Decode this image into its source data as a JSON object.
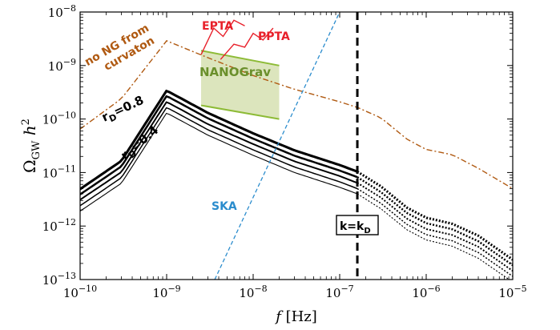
{
  "chart_data": {
    "type": "line",
    "xlabel": "f [Hz]",
    "ylabel": "ΩGW h2",
    "xscale": "log",
    "yscale": "log",
    "xlim": [
      1e-10,
      1e-05
    ],
    "ylim": [
      1e-13,
      1e-08
    ],
    "xticks": [
      {
        "m": "10",
        "e": "−10"
      },
      {
        "m": "10",
        "e": "−9"
      },
      {
        "m": "10",
        "e": "−8"
      },
      {
        "m": "10",
        "e": "−7"
      },
      {
        "m": "10",
        "e": "−6"
      },
      {
        "m": "10",
        "e": "−5"
      }
    ],
    "yticks": [
      {
        "m": "10",
        "e": "−13"
      },
      {
        "m": "10",
        "e": "−12"
      },
      {
        "m": "10",
        "e": "−11"
      },
      {
        "m": "10",
        "e": "−10"
      },
      {
        "m": "10",
        "e": "−9"
      },
      {
        "m": "10",
        "e": "−8"
      }
    ],
    "grid": false,
    "kD_line_f": 1.6e-07,
    "series": [
      {
        "name": "r_D = 0.4",
        "x": [
          1e-10,
          3e-10,
          1e-09,
          3e-09,
          1e-08,
          3e-08,
          1e-07,
          1.6e-07,
          3e-07,
          6e-07,
          1e-06,
          2e-06,
          4e-06,
          1e-05
        ],
        "y": [
          1.9e-12,
          6.3e-12,
          1.3e-10,
          5e-11,
          2.1e-11,
          1e-11,
          5.3e-12,
          4e-12,
          2.1e-12,
          8.5e-13,
          5.5e-13,
          4.2e-13,
          2.5e-13,
          9e-14
        ]
      },
      {
        "name": "",
        "x": [
          1e-10,
          3e-10,
          1e-09,
          3e-09,
          1e-08,
          3e-08,
          1e-07,
          1.6e-07,
          3e-07,
          6e-07,
          1e-06,
          2e-06,
          4e-06,
          1e-05
        ],
        "y": [
          2.4e-12,
          8e-12,
          1.65e-10,
          6.3e-11,
          2.65e-11,
          1.27e-11,
          6.7e-12,
          5e-12,
          2.65e-12,
          1.07e-12,
          6.9e-13,
          5.3e-13,
          3.2e-13,
          1.15e-13
        ]
      },
      {
        "name": "",
        "x": [
          1e-10,
          3e-10,
          1e-09,
          3e-09,
          1e-08,
          3e-08,
          1e-07,
          1.6e-07,
          3e-07,
          6e-07,
          1e-06,
          2e-06,
          4e-06,
          1e-05
        ],
        "y": [
          3.1e-12,
          1.02e-11,
          2.1e-10,
          8e-11,
          3.4e-11,
          1.62e-11,
          8.6e-12,
          6.4e-12,
          3.4e-12,
          1.37e-12,
          8.8e-13,
          6.8e-13,
          4.1e-13,
          1.45e-13
        ]
      },
      {
        "name": "",
        "x": [
          1e-10,
          3e-10,
          1e-09,
          3e-09,
          1e-08,
          3e-08,
          1e-07,
          1.6e-07,
          3e-07,
          6e-07,
          1e-06,
          2e-06,
          4e-06,
          1e-05
        ],
        "y": [
          3.9e-12,
          1.3e-11,
          2.7e-10,
          1.03e-10,
          4.3e-11,
          2.06e-11,
          1.09e-11,
          8.2e-12,
          4.3e-12,
          1.75e-12,
          1.13e-12,
          8.7e-13,
          5.2e-13,
          1.85e-13
        ]
      },
      {
        "name": "r_D = 0.8",
        "x": [
          1e-10,
          3e-10,
          1e-09,
          3e-09,
          1e-08,
          3e-08,
          1e-07,
          1.6e-07,
          3e-07,
          6e-07,
          1e-06,
          2e-06,
          4e-06,
          1e-05
        ],
        "y": [
          4.9e-12,
          1.65e-11,
          3.4e-10,
          1.3e-10,
          5.4e-11,
          2.6e-11,
          1.38e-11,
          1.04e-11,
          5.5e-12,
          2.2e-12,
          1.43e-12,
          1.1e-12,
          6.6e-13,
          2.35e-13
        ]
      },
      {
        "name": "no NG from curvaton",
        "x": [
          1e-10,
          3e-10,
          1e-09,
          3e-09,
          1e-08,
          3e-08,
          1e-07,
          1.6e-07,
          3e-07,
          6e-07,
          1e-06,
          2e-06,
          4e-06,
          1e-05
        ],
        "y": [
          6.5e-11,
          2.4e-10,
          2.9e-09,
          1.4e-09,
          6.5e-10,
          3.6e-10,
          2.1e-10,
          1.65e-10,
          1.05e-10,
          4.2e-11,
          2.7e-11,
          2.15e-11,
          1.2e-11,
          5e-12
        ]
      },
      {
        "name": "SKA",
        "x": [
          3.6e-09,
          1e-08,
          3e-08,
          1e-07
        ],
        "y": [
          1e-13,
          3.5e-11,
          2.5e-09,
          1e-08
        ]
      }
    ],
    "nanograv_region": {
      "f_range": [
        2.5e-09,
        2e-08
      ],
      "y_bottom": [
        1.8e-10,
        1e-10
      ],
      "y_top": [
        1.9e-09,
        1e-09
      ]
    },
    "pta_curves": [
      {
        "name": "EPTA",
        "x": [
          2.5e-09,
          3.5e-09,
          4.5e-09,
          6e-09,
          8e-09
        ],
        "y": [
          1.6e-09,
          5e-09,
          3.5e-09,
          7e-09,
          5.5e-09
        ]
      },
      {
        "name": "PPTA",
        "x": [
          4.2e-09,
          6e-09,
          8e-09,
          1e-08,
          1.3e-08,
          1.7e-08
        ],
        "y": [
          1.3e-09,
          2.5e-09,
          2.2e-09,
          4e-09,
          3e-09,
          5e-09
        ]
      }
    ],
    "annotations": {
      "curvaton_line1": "no NG from",
      "curvaton_line2": "curvaton",
      "epta": "EPTA",
      "ppta": "PPTA",
      "nanograv": "NANOGrav",
      "ska": "SKA",
      "rD_high": "r_D=0.8",
      "rD_low": "r_D=0.4",
      "kD_box": "k=k_D"
    },
    "colors": {
      "curvaton": "#b05a12",
      "pta": "#e8202a",
      "nanograv_fill": "#dce5bd",
      "nanograv_line": "#8dbb36",
      "nanograv_text": "#6a8f2b",
      "ska": "#2a8ccd",
      "model": "#000000"
    }
  }
}
